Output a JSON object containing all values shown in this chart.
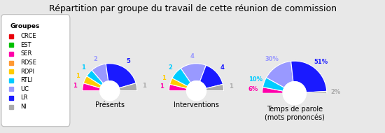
{
  "title": "Répartition par groupe du travail de cette réunion de commission",
  "groups": [
    "CRCE",
    "EST",
    "SER",
    "RDSE",
    "RDPI",
    "RTLI",
    "UC",
    "LR",
    "NI"
  ],
  "colors": [
    "#e8000b",
    "#00c000",
    "#ff00aa",
    "#ff9933",
    "#ffcc00",
    "#00ccff",
    "#9999ff",
    "#1a1aff",
    "#aaaaaa"
  ],
  "presences": [
    0,
    0,
    1,
    0,
    1,
    1,
    2,
    5,
    1
  ],
  "interventions": [
    0,
    0,
    1,
    0,
    1,
    2,
    4,
    4,
    1
  ],
  "temps_parole_pct": [
    0,
    0,
    6,
    0,
    0,
    10,
    30,
    51,
    2
  ],
  "chart_titles": [
    "Présents",
    "Interventions",
    "Temps de parole\n(mots prononcés)"
  ],
  "background_color": "#e8e8e8",
  "legend_bg": "#ffffff",
  "legend_title": "Groupes",
  "title_fontsize": 9,
  "legend_fontsize": 6,
  "label_fontsize": 6,
  "chart_title_fontsize": 7
}
